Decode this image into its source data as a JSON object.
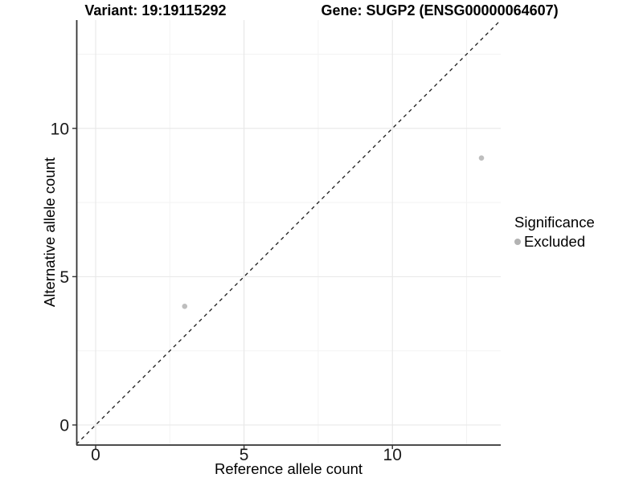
{
  "title": {
    "variant_part": "Variant: 19:19115292",
    "gene_part": "Gene: SUGP2 (ENSG00000064607)"
  },
  "axes": {
    "x_label": "Reference allele count",
    "y_label": "Alternative allele count"
  },
  "legend": {
    "title": "Significance",
    "items": [
      {
        "label": "Excluded",
        "color": "#b3b3b3"
      }
    ]
  },
  "colors": {
    "background": "#ffffff",
    "axis_line": "#333333",
    "tick_mark": "#333333",
    "tick_label": "#1a1a1a",
    "grid_major": "#e7e7e7",
    "grid_minor": "#f3f3f3",
    "reference_line": "#1a1a1a",
    "point": "#bebebe"
  },
  "chart_data": {
    "type": "scatter",
    "title": "Variant: 19:19115292    Gene: SUGP2 (ENSG00000064607)",
    "xlabel": "Reference allele count",
    "ylabel": "Alternative allele count",
    "xlim": [
      -0.65,
      13.65
    ],
    "ylim": [
      -0.65,
      13.65
    ],
    "x_major_ticks": [
      0,
      5,
      10
    ],
    "y_major_ticks": [
      0,
      5,
      10
    ],
    "x_minor_ticks": [
      2.5,
      7.5,
      12.5
    ],
    "y_minor_ticks": [
      2.5,
      7.5,
      12.5
    ],
    "grid": true,
    "legend_position": "right",
    "legend_title": "Significance",
    "series": [
      {
        "name": "Excluded",
        "color": "#bebebe",
        "points": [
          {
            "x": 3,
            "y": 4
          },
          {
            "x": 13,
            "y": 9
          }
        ]
      }
    ],
    "reference_line": {
      "kind": "identity",
      "slope": 1,
      "intercept": 0,
      "style": "dashed"
    }
  }
}
